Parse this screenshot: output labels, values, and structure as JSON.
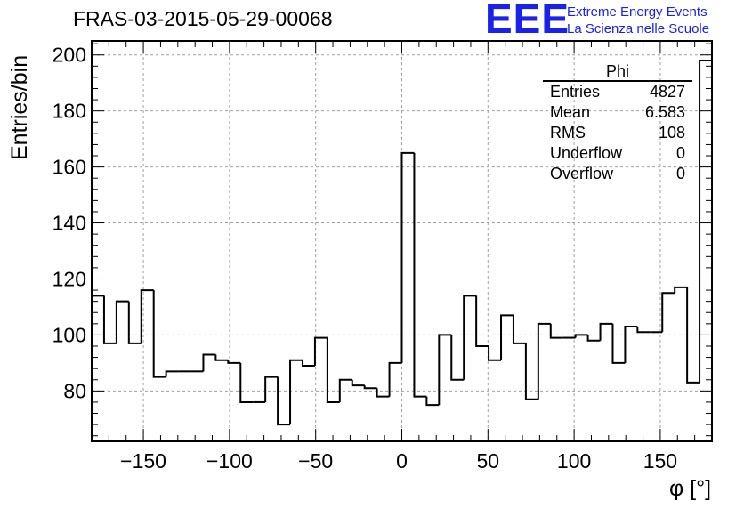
{
  "chart_data": {
    "type": "histogram",
    "title": "FRAS-03-2015-05-29-00068",
    "xlabel": "φ [°]",
    "ylabel": "Entries/bin",
    "xlim": [
      -180,
      180
    ],
    "ylim": [
      62,
      205
    ],
    "grid": true,
    "bin_width": 7.2,
    "x_ticks": [
      -150,
      -100,
      -50,
      0,
      50,
      100,
      150
    ],
    "x_tick_labels": [
      "−150",
      "−100",
      "−50",
      "0",
      "50",
      "100",
      "150"
    ],
    "y_ticks": [
      80,
      100,
      120,
      140,
      160,
      180,
      200
    ],
    "y_tick_labels": [
      "80",
      "100",
      "120",
      "140",
      "160",
      "180",
      "200"
    ],
    "bin_edges_start": -180,
    "values": [
      114,
      97,
      112,
      97,
      116,
      85,
      87,
      87,
      87,
      93,
      91,
      90,
      76,
      76,
      85,
      68,
      91,
      89,
      99,
      76,
      84,
      82,
      81,
      78,
      90,
      165,
      78,
      75,
      100,
      84,
      114,
      96,
      91,
      107,
      97,
      77,
      104,
      99,
      99,
      100,
      98,
      104,
      90,
      103,
      101,
      101,
      115,
      117,
      83,
      198
    ],
    "stats": {
      "name": "Phi",
      "rows": [
        {
          "label": "Entries",
          "value": "4827"
        },
        {
          "label": "Mean",
          "value": "6.583"
        },
        {
          "label": "RMS",
          "value": "108"
        },
        {
          "label": "Underflow",
          "value": "0"
        },
        {
          "label": "Overflow",
          "value": "0"
        }
      ]
    }
  },
  "logo": {
    "mark": "EEE",
    "line1": "Extreme Energy Events",
    "line2": "La Scienza nelle Scuole",
    "color": "#1a22e8"
  }
}
